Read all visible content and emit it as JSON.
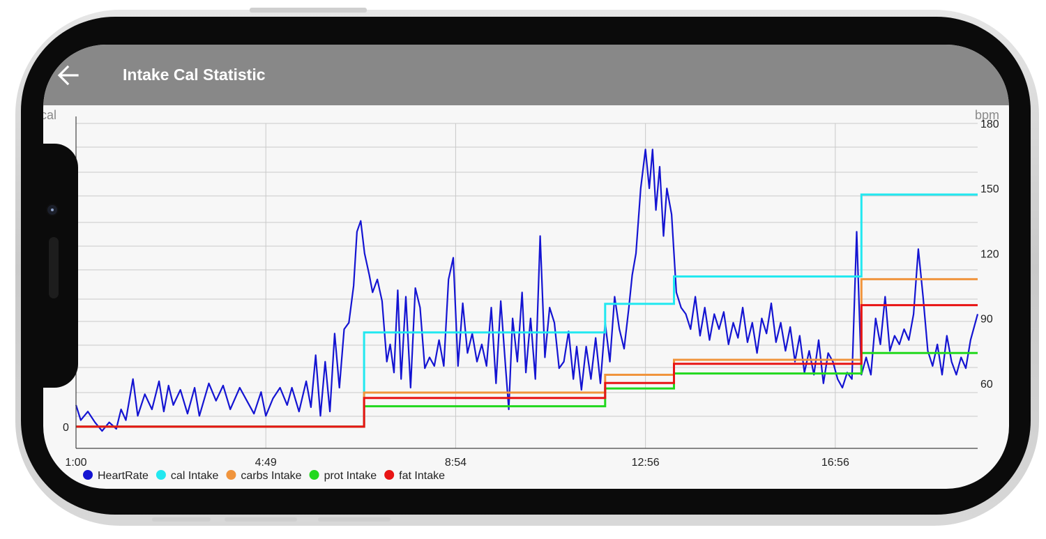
{
  "app": {
    "title": "Intake Cal Statistic",
    "header_color": "#888888"
  },
  "icons": {
    "back": "arrow-left-icon"
  },
  "chart_data": {
    "type": "line",
    "left_axis_label": "cal",
    "right_axis_label": "bpm",
    "left_axis_ticks": [
      "0"
    ],
    "right_axis_ticks": [
      60,
      90,
      120,
      150,
      180
    ],
    "right_ylim": [
      30,
      180
    ],
    "x_tick_labels": [
      "1:00",
      "4:49",
      "8:54",
      "12:56",
      "16:56"
    ],
    "x_range_hours": [
      1.0,
      20.0
    ],
    "grid": true,
    "legend_position": "bottom-left",
    "series": [
      {
        "name": "HeartRate",
        "color": "#1414d2",
        "axis": "bpm",
        "points": [
          [
            1.0,
            50
          ],
          [
            1.1,
            43
          ],
          [
            1.25,
            47
          ],
          [
            1.4,
            42
          ],
          [
            1.55,
            38
          ],
          [
            1.7,
            42
          ],
          [
            1.85,
            39
          ],
          [
            1.95,
            48
          ],
          [
            2.05,
            43
          ],
          [
            2.2,
            62
          ],
          [
            2.3,
            45
          ],
          [
            2.45,
            55
          ],
          [
            2.6,
            48
          ],
          [
            2.75,
            61
          ],
          [
            2.85,
            47
          ],
          [
            2.95,
            59
          ],
          [
            3.05,
            50
          ],
          [
            3.2,
            57
          ],
          [
            3.35,
            46
          ],
          [
            3.5,
            58
          ],
          [
            3.6,
            45
          ],
          [
            3.8,
            60
          ],
          [
            3.95,
            52
          ],
          [
            4.1,
            59
          ],
          [
            4.25,
            48
          ],
          [
            4.45,
            58
          ],
          [
            4.6,
            52
          ],
          [
            4.75,
            46
          ],
          [
            4.9,
            56
          ],
          [
            5.0,
            45
          ],
          [
            5.15,
            53
          ],
          [
            5.3,
            58
          ],
          [
            5.45,
            50
          ],
          [
            5.55,
            58
          ],
          [
            5.7,
            47
          ],
          [
            5.85,
            61
          ],
          [
            5.95,
            49
          ],
          [
            6.05,
            73
          ],
          [
            6.15,
            45
          ],
          [
            6.25,
            70
          ],
          [
            6.35,
            47
          ],
          [
            6.45,
            83
          ],
          [
            6.55,
            58
          ],
          [
            6.65,
            85
          ],
          [
            6.75,
            88
          ],
          [
            6.85,
            105
          ],
          [
            6.92,
            130
          ],
          [
            7.0,
            135
          ],
          [
            7.08,
            120
          ],
          [
            7.18,
            110
          ],
          [
            7.25,
            102
          ],
          [
            7.35,
            108
          ],
          [
            7.45,
            98
          ],
          [
            7.55,
            70
          ],
          [
            7.62,
            78
          ],
          [
            7.7,
            65
          ],
          [
            7.78,
            103
          ],
          [
            7.85,
            62
          ],
          [
            7.95,
            100
          ],
          [
            8.05,
            58
          ],
          [
            8.15,
            104
          ],
          [
            8.25,
            95
          ],
          [
            8.35,
            67
          ],
          [
            8.45,
            72
          ],
          [
            8.55,
            68
          ],
          [
            8.65,
            80
          ],
          [
            8.75,
            68
          ],
          [
            8.85,
            108
          ],
          [
            8.95,
            118
          ],
          [
            9.05,
            68
          ],
          [
            9.15,
            97
          ],
          [
            9.25,
            74
          ],
          [
            9.35,
            83
          ],
          [
            9.45,
            70
          ],
          [
            9.55,
            78
          ],
          [
            9.65,
            68
          ],
          [
            9.75,
            95
          ],
          [
            9.85,
            60
          ],
          [
            9.95,
            98
          ],
          [
            10.05,
            68
          ],
          [
            10.12,
            48
          ],
          [
            10.2,
            90
          ],
          [
            10.3,
            70
          ],
          [
            10.4,
            102
          ],
          [
            10.48,
            65
          ],
          [
            10.58,
            90
          ],
          [
            10.68,
            62
          ],
          [
            10.78,
            128
          ],
          [
            10.88,
            72
          ],
          [
            10.98,
            95
          ],
          [
            11.08,
            88
          ],
          [
            11.18,
            67
          ],
          [
            11.28,
            70
          ],
          [
            11.38,
            84
          ],
          [
            11.48,
            62
          ],
          [
            11.55,
            77
          ],
          [
            11.65,
            57
          ],
          [
            11.75,
            77
          ],
          [
            11.85,
            62
          ],
          [
            11.95,
            81
          ],
          [
            12.05,
            60
          ],
          [
            12.15,
            88
          ],
          [
            12.25,
            70
          ],
          [
            12.35,
            100
          ],
          [
            12.45,
            85
          ],
          [
            12.55,
            76
          ],
          [
            12.65,
            95
          ],
          [
            12.72,
            110
          ],
          [
            12.8,
            120
          ],
          [
            12.9,
            150
          ],
          [
            13.0,
            168
          ],
          [
            13.08,
            150
          ],
          [
            13.15,
            168
          ],
          [
            13.22,
            140
          ],
          [
            13.3,
            160
          ],
          [
            13.38,
            128
          ],
          [
            13.45,
            150
          ],
          [
            13.55,
            138
          ],
          [
            13.65,
            102
          ],
          [
            13.75,
            95
          ],
          [
            13.85,
            92
          ],
          [
            13.95,
            85
          ],
          [
            14.05,
            100
          ],
          [
            14.15,
            82
          ],
          [
            14.25,
            95
          ],
          [
            14.35,
            80
          ],
          [
            14.45,
            92
          ],
          [
            14.55,
            85
          ],
          [
            14.65,
            93
          ],
          [
            14.75,
            78
          ],
          [
            14.85,
            88
          ],
          [
            14.95,
            81
          ],
          [
            15.05,
            95
          ],
          [
            15.15,
            79
          ],
          [
            15.25,
            88
          ],
          [
            15.35,
            74
          ],
          [
            15.45,
            90
          ],
          [
            15.55,
            83
          ],
          [
            15.65,
            97
          ],
          [
            15.75,
            79
          ],
          [
            15.85,
            88
          ],
          [
            15.95,
            75
          ],
          [
            16.05,
            86
          ],
          [
            16.15,
            70
          ],
          [
            16.25,
            82
          ],
          [
            16.35,
            65
          ],
          [
            16.45,
            75
          ],
          [
            16.55,
            64
          ],
          [
            16.65,
            80
          ],
          [
            16.75,
            60
          ],
          [
            16.85,
            74
          ],
          [
            16.95,
            70
          ],
          [
            17.05,
            62
          ],
          [
            17.15,
            58
          ],
          [
            17.25,
            65
          ],
          [
            17.35,
            62
          ],
          [
            17.45,
            130
          ],
          [
            17.55,
            64
          ],
          [
            17.65,
            72
          ],
          [
            17.75,
            64
          ],
          [
            17.85,
            90
          ],
          [
            17.95,
            78
          ],
          [
            18.05,
            100
          ],
          [
            18.15,
            75
          ],
          [
            18.25,
            82
          ],
          [
            18.35,
            78
          ],
          [
            18.45,
            85
          ],
          [
            18.55,
            80
          ],
          [
            18.65,
            92
          ],
          [
            18.75,
            122
          ],
          [
            18.85,
            100
          ],
          [
            18.95,
            75
          ],
          [
            19.05,
            68
          ],
          [
            19.15,
            78
          ],
          [
            19.25,
            64
          ],
          [
            19.35,
            82
          ],
          [
            19.45,
            70
          ],
          [
            19.55,
            64
          ],
          [
            19.65,
            72
          ],
          [
            19.75,
            67
          ],
          [
            19.85,
            80
          ],
          [
            20.0,
            92
          ]
        ]
      },
      {
        "name": "cal Intake",
        "color": "#22e8f0",
        "axis": "cal",
        "steps": [
          [
            1.0,
            0
          ],
          [
            7.07,
            69
          ],
          [
            12.15,
            90
          ],
          [
            13.6,
            110
          ],
          [
            17.55,
            170
          ],
          [
            20.0,
            170
          ]
        ]
      },
      {
        "name": "carbs Intake",
        "color": "#f0943c",
        "axis": "cal",
        "steps": [
          [
            1.0,
            0
          ],
          [
            7.07,
            25
          ],
          [
            12.15,
            38
          ],
          [
            13.6,
            49
          ],
          [
            17.55,
            108
          ],
          [
            20.0,
            108
          ]
        ]
      },
      {
        "name": "prot Intake",
        "color": "#22d81e",
        "axis": "cal",
        "steps": [
          [
            1.0,
            0
          ],
          [
            7.07,
            15
          ],
          [
            12.15,
            28
          ],
          [
            13.6,
            39
          ],
          [
            17.55,
            54
          ],
          [
            20.0,
            54
          ]
        ]
      },
      {
        "name": "fat Intake",
        "color": "#e81414",
        "axis": "cal",
        "steps": [
          [
            1.0,
            0
          ],
          [
            7.07,
            21
          ],
          [
            12.15,
            32
          ],
          [
            13.6,
            46
          ],
          [
            17.55,
            89
          ],
          [
            20.0,
            89
          ]
        ]
      }
    ]
  }
}
